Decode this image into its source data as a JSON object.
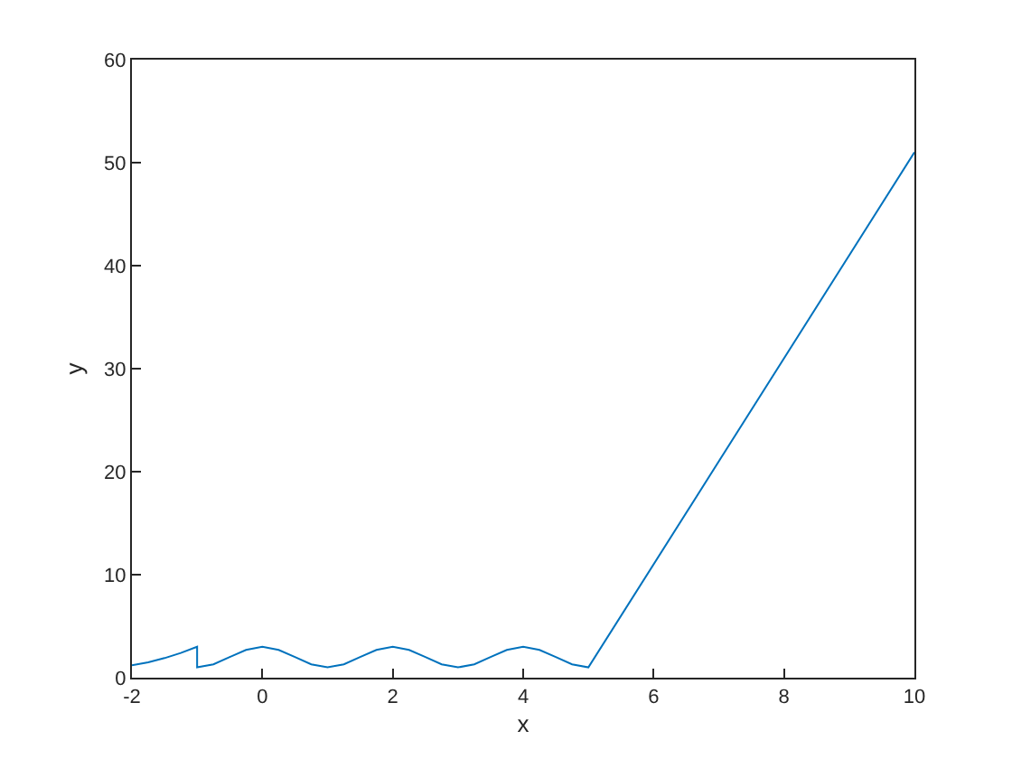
{
  "chart_data": {
    "type": "line",
    "xlabel": "x",
    "ylabel": "y",
    "x": [
      -2,
      -1.75,
      -1.5,
      -1.25,
      -1,
      -1,
      -0.75,
      -0.5,
      -0.25,
      0,
      0.25,
      0.5,
      0.75,
      1,
      1.25,
      1.5,
      1.75,
      2,
      2.25,
      2.5,
      2.75,
      3,
      3.25,
      3.5,
      3.75,
      4,
      4.25,
      4.5,
      4.75,
      5,
      10
    ],
    "series": [
      {
        "color": "#0072bd",
        "values": [
          1.2,
          1.5,
          1.9,
          2.4,
          3,
          1,
          1.3,
          2,
          2.7,
          3,
          2.7,
          2,
          1.3,
          1,
          1.3,
          2,
          2.7,
          3,
          2.7,
          2,
          1.3,
          1,
          1.3,
          2,
          2.7,
          3,
          2.7,
          2,
          1.3,
          1,
          51
        ]
      }
    ],
    "xlim": [
      -2,
      10
    ],
    "xticks": [
      -2,
      0,
      2,
      4,
      6,
      8,
      10
    ],
    "ylim": [
      0,
      60
    ],
    "yticks": [
      0,
      10,
      20,
      30,
      40,
      50,
      60
    ],
    "grid": false,
    "line_style": "solid",
    "marker": "none"
  }
}
